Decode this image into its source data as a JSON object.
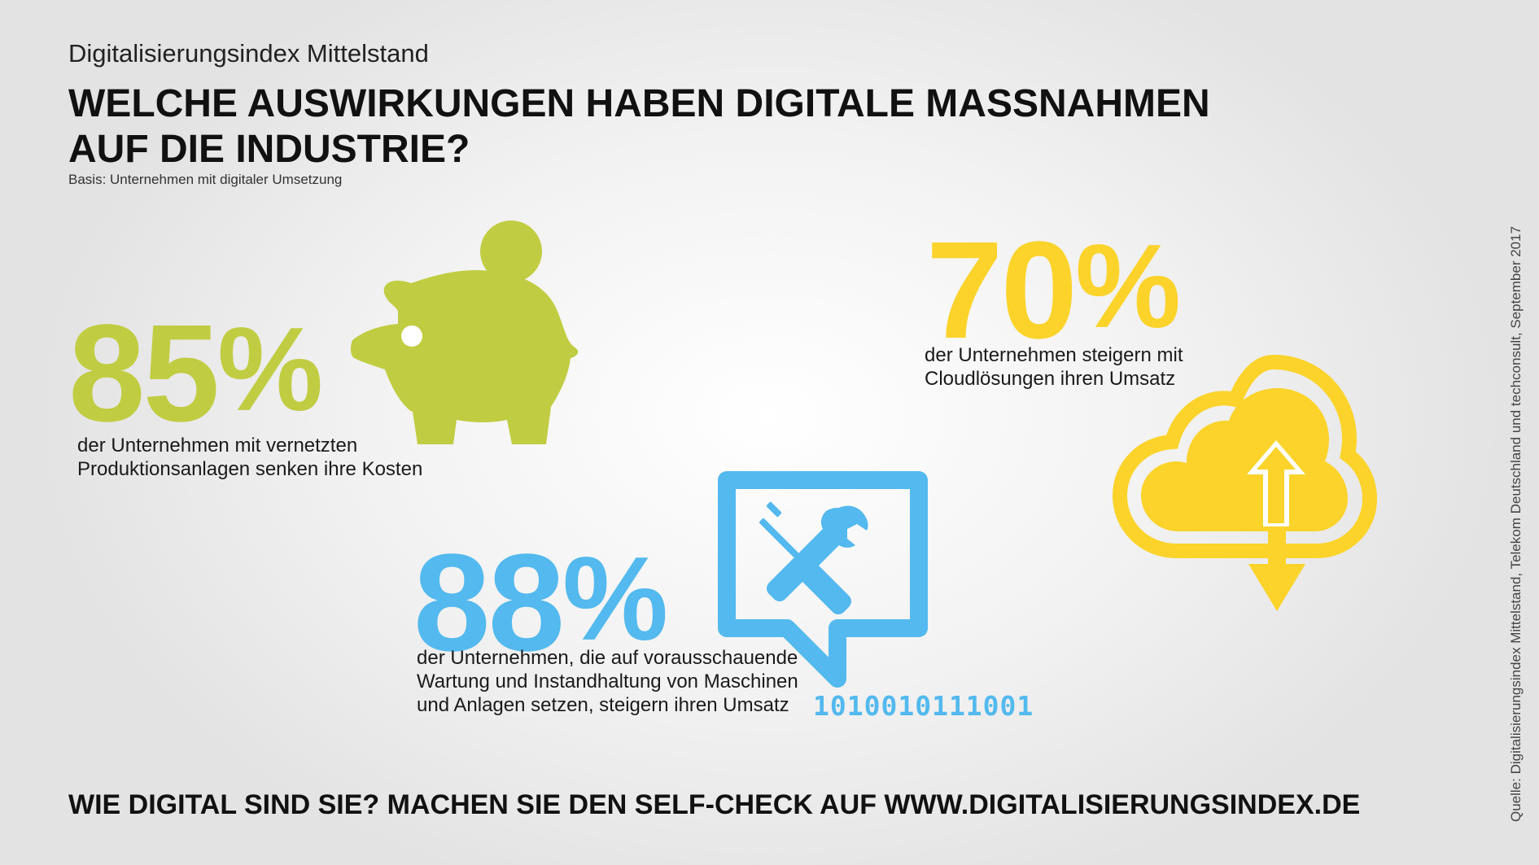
{
  "header": {
    "subtitle": "Digitalisierungsindex Mittelstand",
    "headline_line1": "WELCHE AUSWIRKUNGEN HABEN DIGITALE MASSNAHMEN",
    "headline_line2": "AUF DIE INDUSTRIE?",
    "basis": "Basis: Unternehmen mit digitaler Umsetzung"
  },
  "stats": [
    {
      "value": "85",
      "unit": "%",
      "desc_line1": "der Unternehmen mit vernetzten",
      "desc_line2": "Produktionsanlagen senken ihre Kosten",
      "color": "#c0cd42",
      "icon": "piggy-bank-icon"
    },
    {
      "value": "88",
      "unit": "%",
      "desc_line1": "der Unternehmen, die auf vorausschauende",
      "desc_line2": "Wartung und Instandhaltung von Maschinen",
      "desc_line3": "und Anlagen setzen, steigern ihren Umsatz",
      "color": "#53b9ee",
      "icon": "monitor-tools-icon",
      "binary": "1010010111001"
    },
    {
      "value": "70",
      "unit": "%",
      "desc_line1": "der Unternehmen steigern mit",
      "desc_line2": "Cloudlösungen ihren Umsatz",
      "color": "#fbd32a",
      "icon": "cloud-upload-download-icon"
    }
  ],
  "footer": {
    "cta": "WIE DIGITAL SIND SIE? MACHEN SIE DEN SELF-CHECK AUF WWW.DIGITALISIERUNGSINDEX.DE",
    "source": "Quelle: Digitalisierungsindex Mittelstand, Telekom Deutschland und techconsult, September 2017"
  }
}
